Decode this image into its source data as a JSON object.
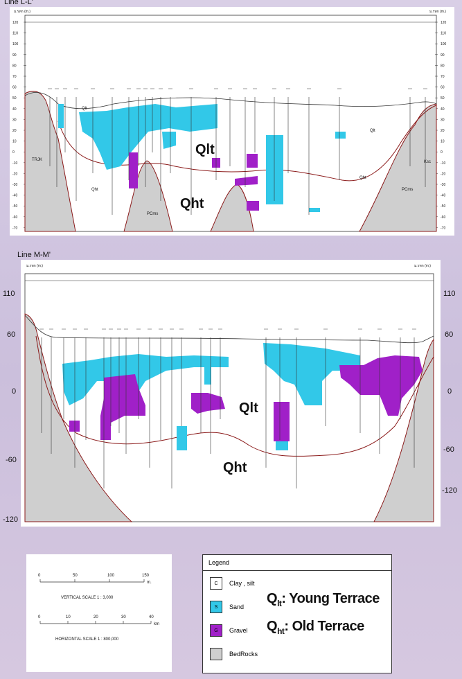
{
  "section1": {
    "title": "Line L-L'",
    "unit_label": "ม.รทก (m.)",
    "y_ticks": [
      "120",
      "110",
      "100",
      "90",
      "80",
      "70",
      "60",
      "50",
      "40",
      "30",
      "20",
      "10",
      "0",
      "-10",
      "-20",
      "-30",
      "-40",
      "-50",
      "-60",
      "-70"
    ],
    "unit_qlt": "Qlt",
    "unit_qht": "Qht",
    "small_labels": [
      "TRJK",
      "Qht",
      "PCms",
      "Qht",
      "PCms",
      "Ksc",
      "Qlt",
      "Qlt"
    ]
  },
  "section2": {
    "title": "Line M-M'",
    "unit_label": "ม.รทก (m.)",
    "y_ticks_big": [
      "110",
      "60",
      "0",
      "-60",
      "-120"
    ],
    "unit_qlt": "Qlt",
    "unit_qht": "Qht"
  },
  "scales": {
    "vertical_ticks": [
      "0",
      "50",
      "100",
      "150"
    ],
    "vertical_unit": "m.",
    "vertical_label": "VERTICAL  SCALE 1 : 3,000",
    "horizontal_ticks": [
      "0",
      "10",
      "20",
      "30",
      "40"
    ],
    "horizontal_unit": "km",
    "horizontal_label": "HORIZONTAL  SCALE 1 : 800,000"
  },
  "legend": {
    "title": "Legend",
    "items": [
      {
        "symbol": "C",
        "label": "Clay , silt",
        "color": "#ffffff"
      },
      {
        "symbol": "S",
        "label": "Sand",
        "color": "#32c8e8"
      },
      {
        "symbol": "G",
        "label": "Gravel",
        "color": "#a020c8"
      },
      {
        "symbol": "",
        "label": "BedRocks",
        "color": "#cfcfcf"
      }
    ],
    "qlt_sym": "Q",
    "qlt_sub": "lt",
    "qlt_text": ": Young Terrace",
    "qht_sym": "Q",
    "qht_sub": "ht",
    "qht_text": ": Old Terrace"
  },
  "colors": {
    "sand": "#32c8e8",
    "gravel": "#a020c8",
    "bedrock": "#cfcfcf",
    "boundary": "#8b1a1a"
  }
}
